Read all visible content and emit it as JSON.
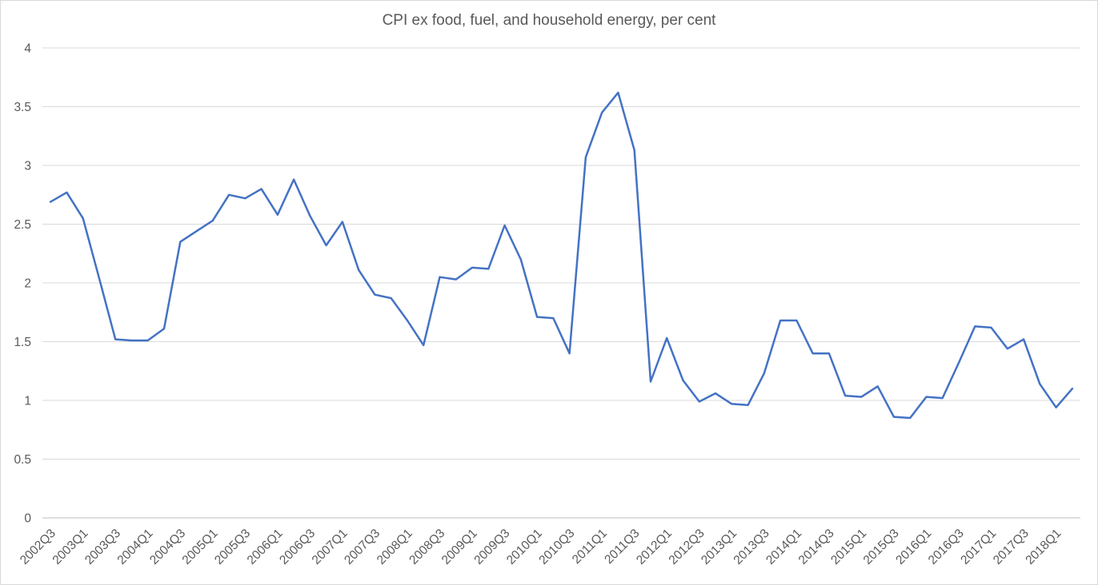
{
  "chart_data": {
    "type": "line",
    "title": "CPI ex food, fuel, and household energy, per cent",
    "xlabel": "",
    "ylabel": "",
    "ylim": [
      0,
      4
    ],
    "ytick_step": 0.5,
    "ytick_labels": [
      "0",
      "0.5",
      "1",
      "1.5",
      "2",
      "2.5",
      "3",
      "3.5",
      "4"
    ],
    "x_tick_every": 2,
    "x_tick_labels": [
      "2002Q3",
      "2003Q1",
      "2003Q3",
      "2004Q1",
      "2004Q3",
      "2005Q1",
      "2005Q3",
      "2006Q1",
      "2006Q3",
      "2007Q1",
      "2007Q3",
      "2008Q1",
      "2008Q3",
      "2009Q1",
      "2009Q3",
      "2010Q1",
      "2010Q3",
      "2011Q1",
      "2011Q3",
      "2012Q1",
      "2012Q3",
      "2013Q1",
      "2013Q3",
      "2014Q1",
      "2014Q3",
      "2015Q1",
      "2015Q3",
      "2016Q1",
      "2016Q3",
      "2017Q1",
      "2017Q3",
      "2018Q1"
    ],
    "categories": [
      "2002Q3",
      "2002Q4",
      "2003Q1",
      "2003Q2",
      "2003Q3",
      "2003Q4",
      "2004Q1",
      "2004Q2",
      "2004Q3",
      "2004Q4",
      "2005Q1",
      "2005Q2",
      "2005Q3",
      "2005Q4",
      "2006Q1",
      "2006Q2",
      "2006Q3",
      "2006Q4",
      "2007Q1",
      "2007Q2",
      "2007Q3",
      "2007Q4",
      "2008Q1",
      "2008Q2",
      "2008Q3",
      "2008Q4",
      "2009Q1",
      "2009Q2",
      "2009Q3",
      "2009Q4",
      "2010Q1",
      "2010Q2",
      "2010Q3",
      "2010Q4",
      "2011Q1",
      "2011Q2",
      "2011Q3",
      "2011Q4",
      "2012Q1",
      "2012Q2",
      "2012Q3",
      "2012Q4",
      "2013Q1",
      "2013Q2",
      "2013Q3",
      "2013Q4",
      "2014Q1",
      "2014Q2",
      "2014Q3",
      "2014Q4",
      "2015Q1",
      "2015Q2",
      "2015Q3",
      "2015Q4",
      "2016Q1",
      "2016Q2",
      "2016Q3",
      "2016Q4",
      "2017Q1",
      "2017Q2",
      "2017Q3",
      "2017Q4",
      "2018Q1",
      "2018Q2"
    ],
    "values": [
      2.69,
      2.77,
      2.55,
      2.04,
      1.52,
      1.51,
      1.51,
      1.61,
      2.35,
      2.44,
      2.53,
      2.75,
      2.72,
      2.8,
      2.58,
      2.88,
      2.57,
      2.32,
      2.52,
      2.11,
      1.9,
      1.87,
      1.68,
      1.47,
      2.05,
      2.03,
      2.13,
      2.12,
      2.49,
      2.2,
      1.71,
      1.7,
      1.4,
      3.07,
      3.45,
      3.62,
      3.13,
      1.16,
      1.53,
      1.17,
      0.99,
      1.06,
      0.97,
      0.96,
      1.23,
      1.68,
      1.68,
      1.4,
      1.4,
      1.04,
      1.03,
      1.12,
      0.86,
      0.85,
      1.03,
      1.02,
      1.32,
      1.63,
      1.62,
      1.44,
      1.52,
      1.14,
      0.94,
      1.1
    ],
    "grid": "horizontal",
    "legend_position": "none",
    "line_color": "#4472C4",
    "gridline_color": "#D9D9D9",
    "axis_line_color": "#BFBFBF",
    "text_color": "#595959",
    "background_color": "#FFFFFF"
  }
}
